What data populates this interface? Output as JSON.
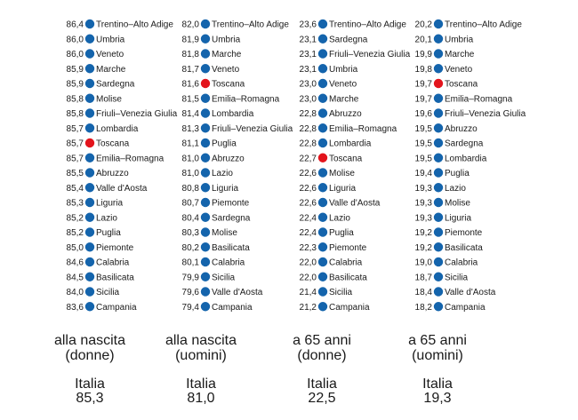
{
  "colors": {
    "default": "#1464ac",
    "highlight": "#e3141c",
    "text": "#1a1a1a"
  },
  "chart_data": {
    "type": "scatter",
    "highlight_region": "Toscana",
    "columns": [
      {
        "caption": [
          "alla nascita",
          "(donne)"
        ],
        "italia_label": "Italia",
        "italia_value": "85,3",
        "items": [
          {
            "value": "86,4",
            "region": "Trentino–Alto Adige"
          },
          {
            "value": "86,0",
            "region": "Umbria"
          },
          {
            "value": "86,0",
            "region": "Veneto"
          },
          {
            "value": "85,9",
            "region": "Marche"
          },
          {
            "value": "85,9",
            "region": "Sardegna"
          },
          {
            "value": "85,8",
            "region": "Molise"
          },
          {
            "value": "85,8",
            "region": "Friuli–Venezia Giulia"
          },
          {
            "value": "85,7",
            "region": "Lombardia"
          },
          {
            "value": "85,7",
            "region": "Toscana"
          },
          {
            "value": "85,7",
            "region": "Emilia–Romagna"
          },
          {
            "value": "85,5",
            "region": "Abruzzo"
          },
          {
            "value": "85,4",
            "region": "Valle d'Aosta"
          },
          {
            "value": "85,3",
            "region": "Liguria"
          },
          {
            "value": "85,2",
            "region": "Lazio"
          },
          {
            "value": "85,2",
            "region": "Puglia"
          },
          {
            "value": "85,0",
            "region": "Piemonte"
          },
          {
            "value": "84,6",
            "region": "Calabria"
          },
          {
            "value": "84,5",
            "region": "Basilicata"
          },
          {
            "value": "84,0",
            "region": "Sicilia"
          },
          {
            "value": "83,6",
            "region": "Campania"
          }
        ]
      },
      {
        "caption": [
          "alla nascita",
          "(uomini)"
        ],
        "italia_label": "Italia",
        "italia_value": "81,0",
        "items": [
          {
            "value": "82,0",
            "region": "Trentino–Alto Adige"
          },
          {
            "value": "81,9",
            "region": "Umbria"
          },
          {
            "value": "81,8",
            "region": "Marche"
          },
          {
            "value": "81,7",
            "region": "Veneto"
          },
          {
            "value": "81,6",
            "region": "Toscana"
          },
          {
            "value": "81,5",
            "region": "Emilia–Romagna"
          },
          {
            "value": "81,4",
            "region": "Lombardia"
          },
          {
            "value": "81,3",
            "region": "Friuli–Venezia Giulia"
          },
          {
            "value": "81,1",
            "region": "Puglia"
          },
          {
            "value": "81,0",
            "region": "Abruzzo"
          },
          {
            "value": "81,0",
            "region": "Lazio"
          },
          {
            "value": "80,8",
            "region": "Liguria"
          },
          {
            "value": "80,7",
            "region": "Piemonte"
          },
          {
            "value": "80,4",
            "region": "Sardegna"
          },
          {
            "value": "80,3",
            "region": "Molise"
          },
          {
            "value": "80,2",
            "region": "Basilicata"
          },
          {
            "value": "80,1",
            "region": "Calabria"
          },
          {
            "value": "79,9",
            "region": "Sicilia"
          },
          {
            "value": "79,6",
            "region": "Valle d'Aosta"
          },
          {
            "value": "79,4",
            "region": "Campania"
          }
        ]
      },
      {
        "caption": [
          "a 65 anni",
          "(donne)"
        ],
        "italia_label": "Italia",
        "italia_value": "22,5",
        "items": [
          {
            "value": "23,6",
            "region": "Trentino–Alto Adige"
          },
          {
            "value": "23,1",
            "region": "Sardegna"
          },
          {
            "value": "23,1",
            "region": "Friuli–Venezia Giulia"
          },
          {
            "value": "23,1",
            "region": "Umbria"
          },
          {
            "value": "23,0",
            "region": "Veneto"
          },
          {
            "value": "23,0",
            "region": "Marche"
          },
          {
            "value": "22,8",
            "region": "Abruzzo"
          },
          {
            "value": "22,8",
            "region": "Emilia–Romagna"
          },
          {
            "value": "22,8",
            "region": "Lombardia"
          },
          {
            "value": "22,7",
            "region": "Toscana"
          },
          {
            "value": "22,6",
            "region": "Molise"
          },
          {
            "value": "22,6",
            "region": "Liguria"
          },
          {
            "value": "22,6",
            "region": "Valle d'Aosta"
          },
          {
            "value": "22,4",
            "region": "Lazio"
          },
          {
            "value": "22,4",
            "region": "Puglia"
          },
          {
            "value": "22,3",
            "region": "Piemonte"
          },
          {
            "value": "22,0",
            "region": "Calabria"
          },
          {
            "value": "22,0",
            "region": "Basilicata"
          },
          {
            "value": "21,4",
            "region": "Sicilia"
          },
          {
            "value": "21,2",
            "region": "Campania"
          }
        ]
      },
      {
        "caption": [
          "a 65 anni",
          "(uomini)"
        ],
        "italia_label": "Italia",
        "italia_value": "19,3",
        "items": [
          {
            "value": "20,2",
            "region": "Trentino–Alto Adige"
          },
          {
            "value": "20,1",
            "region": "Umbria"
          },
          {
            "value": "19,9",
            "region": "Marche"
          },
          {
            "value": "19,8",
            "region": "Veneto"
          },
          {
            "value": "19,7",
            "region": "Toscana"
          },
          {
            "value": "19,7",
            "region": "Emilia–Romagna"
          },
          {
            "value": "19,6",
            "region": "Friuli–Venezia Giulia"
          },
          {
            "value": "19,5",
            "region": "Abruzzo"
          },
          {
            "value": "19,5",
            "region": "Sardegna"
          },
          {
            "value": "19,5",
            "region": "Lombardia"
          },
          {
            "value": "19,4",
            "region": "Puglia"
          },
          {
            "value": "19,3",
            "region": "Lazio"
          },
          {
            "value": "19,3",
            "region": "Molise"
          },
          {
            "value": "19,3",
            "region": "Liguria"
          },
          {
            "value": "19,2",
            "region": "Piemonte"
          },
          {
            "value": "19,2",
            "region": "Basilicata"
          },
          {
            "value": "19,0",
            "region": "Calabria"
          },
          {
            "value": "18,7",
            "region": "Sicilia"
          },
          {
            "value": "18,4",
            "region": "Valle d'Aosta"
          },
          {
            "value": "18,2",
            "region": "Campania"
          }
        ]
      }
    ]
  }
}
